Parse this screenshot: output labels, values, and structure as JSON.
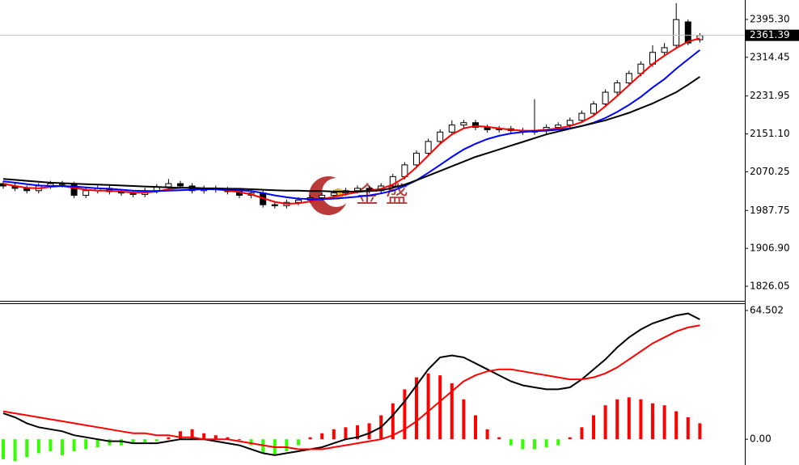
{
  "chart_data": [
    {
      "type": "candlestick",
      "open": [
        2045,
        2040,
        2035,
        2030,
        2040,
        2045,
        2043,
        2020,
        2030,
        2035,
        2028,
        2025,
        2022,
        2030,
        2038,
        2045,
        2040,
        2030,
        2035,
        2032,
        2028,
        2020,
        2025,
        2000,
        1998,
        2005,
        2010,
        2015,
        2020,
        2025,
        2030,
        2035,
        2030,
        2040,
        2060,
        2085,
        2110,
        2135,
        2155,
        2170,
        2175,
        2165,
        2160,
        2162,
        2158,
        2155,
        2158,
        2165,
        2170,
        2180,
        2195,
        2215,
        2240,
        2260,
        2280,
        2300,
        2325,
        2340,
        2390,
        2352
      ],
      "high": [
        2051,
        2046,
        2041,
        2046,
        2051,
        2051,
        2049,
        2036,
        2041,
        2041,
        2034,
        2031,
        2036,
        2044,
        2055,
        2051,
        2046,
        2041,
        2041,
        2038,
        2034,
        2031,
        2031,
        2006,
        2011,
        2016,
        2021,
        2026,
        2031,
        2036,
        2041,
        2041,
        2046,
        2066,
        2091,
        2116,
        2141,
        2161,
        2180,
        2181,
        2181,
        2171,
        2168,
        2168,
        2164,
        2225,
        2171,
        2176,
        2186,
        2201,
        2221,
        2246,
        2266,
        2286,
        2306,
        2340,
        2345,
        2430,
        2395,
        2366
      ],
      "low": [
        2034,
        2029,
        2024,
        2024,
        2034,
        2037,
        2014,
        2014,
        2024,
        2022,
        2019,
        2016,
        2016,
        2024,
        2032,
        2034,
        2024,
        2024,
        2026,
        2022,
        2014,
        2014,
        1994,
        1992,
        1992,
        1999,
        2004,
        2009,
        2014,
        2019,
        2024,
        2024,
        2024,
        2034,
        2054,
        2079,
        2104,
        2129,
        2149,
        2164,
        2159,
        2154,
        2154,
        2152,
        2149,
        2149,
        2152,
        2159,
        2164,
        2174,
        2189,
        2209,
        2234,
        2254,
        2274,
        2294,
        2319,
        2334,
        2340,
        2346
      ],
      "close": [
        2040,
        2035,
        2030,
        2040,
        2045,
        2043,
        2020,
        2030,
        2035,
        2028,
        2025,
        2022,
        2030,
        2038,
        2045,
        2040,
        2030,
        2035,
        2032,
        2028,
        2020,
        2025,
        2000,
        1998,
        2005,
        2010,
        2015,
        2020,
        2025,
        2030,
        2035,
        2030,
        2040,
        2060,
        2085,
        2110,
        2135,
        2155,
        2170,
        2175,
        2165,
        2160,
        2162,
        2158,
        2155,
        2158,
        2165,
        2170,
        2180,
        2195,
        2215,
        2240,
        2260,
        2280,
        2300,
        2325,
        2335,
        2395,
        2345,
        2361
      ],
      "up_color": "#ffffff",
      "down_color": "#000000",
      "moving_averages": [
        {
          "color": "#ff0000",
          "values": [
            2045,
            2040,
            2036,
            2035,
            2038,
            2040,
            2036,
            2032,
            2030,
            2030,
            2028,
            2026,
            2026,
            2028,
            2033,
            2036,
            2036,
            2035,
            2033,
            2030,
            2027,
            2022,
            2014,
            2006,
            2002,
            2003,
            2007,
            2012,
            2017,
            2022,
            2027,
            2030,
            2034,
            2043,
            2058,
            2080,
            2105,
            2130,
            2150,
            2163,
            2168,
            2166,
            2163,
            2160,
            2158,
            2158,
            2160,
            2163,
            2168,
            2176,
            2190,
            2210,
            2232,
            2255,
            2278,
            2300,
            2318,
            2334,
            2348,
            2355
          ]
        },
        {
          "color": "#0000ff",
          "values": [
            2050,
            2047,
            2044,
            2041,
            2040,
            2040,
            2039,
            2037,
            2035,
            2034,
            2032,
            2030,
            2029,
            2029,
            2030,
            2031,
            2032,
            2033,
            2033,
            2032,
            2031,
            2029,
            2025,
            2020,
            2016,
            2013,
            2012,
            2012,
            2013,
            2015,
            2017,
            2020,
            2024,
            2030,
            2040,
            2052,
            2068,
            2085,
            2102,
            2118,
            2130,
            2140,
            2147,
            2152,
            2155,
            2157,
            2158,
            2160,
            2163,
            2168,
            2175,
            2185,
            2198,
            2213,
            2230,
            2250,
            2268,
            2290,
            2310,
            2330
          ]
        },
        {
          "color": "#000000",
          "values": [
            2055,
            2053,
            2051,
            2049,
            2047,
            2046,
            2045,
            2044,
            2043,
            2042,
            2041,
            2040,
            2039,
            2038,
            2037,
            2036,
            2036,
            2035,
            2035,
            2034,
            2034,
            2033,
            2032,
            2031,
            2030,
            2030,
            2029,
            2029,
            2028,
            2028,
            2028,
            2029,
            2031,
            2036,
            2043,
            2052,
            2062,
            2072,
            2082,
            2092,
            2102,
            2110,
            2118,
            2126,
            2134,
            2142,
            2150,
            2156,
            2162,
            2168,
            2174,
            2180,
            2188,
            2196,
            2206,
            2216,
            2228,
            2240,
            2256,
            2273
          ]
        }
      ],
      "last_price": 2361.39,
      "ylim": [
        1795,
        2436.7
      ],
      "yticks": [
        {
          "value": 2395.3,
          "label": "2395.30"
        },
        2314.45,
        2231.95,
        {
          "value": 2151.1,
          "label": "2151.10"
        },
        2070.25,
        1987.75,
        {
          "value": 1906.9,
          "label": "1906.90"
        },
        1826.05
      ],
      "watermark": "金 盛"
    },
    {
      "type": "macd",
      "histogram": [
        -10,
        -11,
        -9,
        -7,
        -6,
        -8,
        -6,
        -5,
        -4,
        -3,
        -3,
        -2,
        -2,
        -1,
        1,
        4,
        5,
        3,
        2,
        1,
        0,
        -3,
        -7,
        -8,
        -6,
        -3,
        1,
        3,
        5,
        6,
        7,
        8,
        12,
        18,
        25,
        31,
        33,
        32,
        28,
        20,
        12,
        5,
        1,
        -3,
        -5,
        -5,
        -4,
        -3,
        1,
        6,
        12,
        17,
        20,
        21,
        20,
        18,
        17,
        14,
        11,
        8
      ],
      "up_color": "#ff0000",
      "down_color": "#33ff00",
      "lines": [
        {
          "color": "#000000",
          "values": [
            13,
            11,
            8,
            6,
            5,
            4,
            2,
            1,
            0,
            -1,
            -1,
            -2,
            -2,
            -2,
            -1,
            0,
            0,
            0,
            -1,
            -2,
            -3,
            -5,
            -7,
            -8,
            -7,
            -6,
            -5,
            -4,
            -2,
            0,
            1,
            3,
            6,
            12,
            19,
            27,
            35,
            41,
            42,
            41,
            38,
            35,
            32,
            29,
            27,
            26,
            25,
            25,
            26,
            30,
            35,
            40,
            46,
            51,
            55,
            58,
            60,
            62,
            63,
            60
          ]
        },
        {
          "color": "#ff0000",
          "values": [
            14,
            13,
            12,
            11,
            10,
            9,
            8,
            7,
            6,
            5,
            4,
            3,
            3,
            2,
            2,
            1,
            1,
            0,
            0,
            0,
            -1,
            -2,
            -3,
            -4,
            -4,
            -5,
            -5,
            -5,
            -4,
            -3,
            -2,
            -1,
            0,
            2,
            5,
            9,
            14,
            19,
            24,
            29,
            32,
            34,
            35,
            35,
            34,
            33,
            32,
            31,
            30,
            30,
            31,
            33,
            36,
            40,
            44,
            48,
            51,
            54,
            56,
            57
          ]
        }
      ],
      "ylim": [
        -12.9,
        67.7
      ],
      "yticks": [
        {
          "value": 64.502,
          "label": "64.502"
        },
        {
          "value": 0,
          "label": "0.00"
        }
      ]
    }
  ]
}
